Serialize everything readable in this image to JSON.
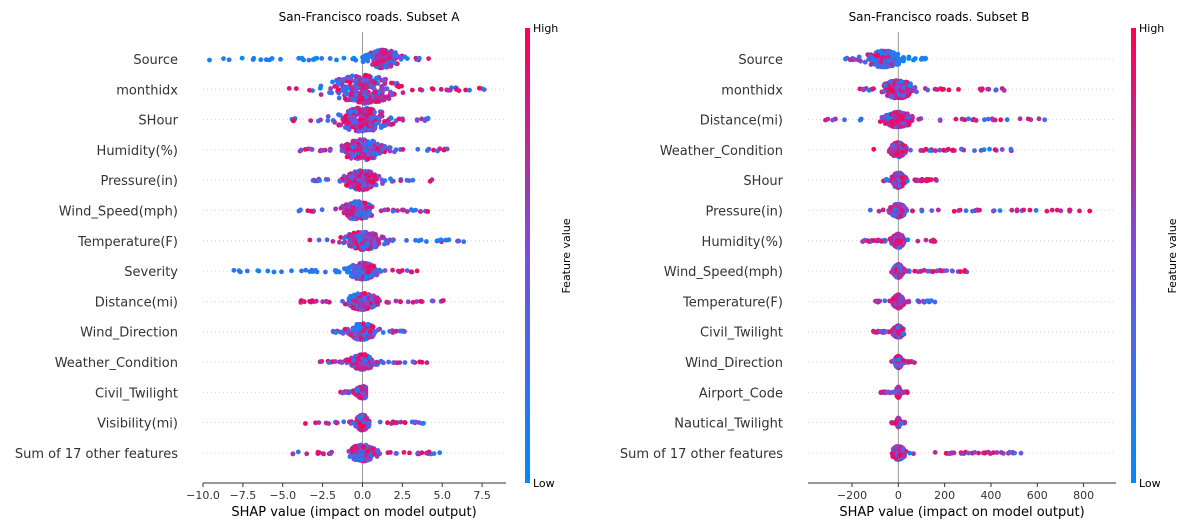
{
  "chart_data": [
    {
      "type": "scatter",
      "subtype": "shap-beeswarm",
      "title": "San-Francisco roads. Subset A",
      "xlabel": "SHAP value (impact on model output)",
      "xlim": [
        -10.0,
        9.0
      ],
      "xticks": [
        "−10.0",
        "−7.5",
        "−5.0",
        "−2.5",
        "0.0",
        "2.5",
        "5.0",
        "7.5"
      ],
      "xtick_values": [
        -10.0,
        -7.5,
        -5.0,
        -2.5,
        0.0,
        2.5,
        5.0,
        7.5
      ],
      "colorbar": {
        "label": "Feature value",
        "high": "High",
        "low": "Low",
        "low_color": "#008bfb",
        "high_color": "#ff0051"
      },
      "features": [
        {
          "name": "Source",
          "min": -9.7,
          "max": 4.2,
          "center": 1.3,
          "spread": 1.0,
          "width": 0.6,
          "red_bias": 0.55,
          "neg_color": "blue"
        },
        {
          "name": "monthidx",
          "min": -4.8,
          "max": 7.8,
          "center": 0.0,
          "spread": 2.0,
          "width": 0.95,
          "red_bias": 0.5
        },
        {
          "name": "SHour",
          "min": -4.5,
          "max": 4.3,
          "center": 0.0,
          "spread": 1.5,
          "width": 0.8,
          "red_bias": 0.55
        },
        {
          "name": "Humidity(%)",
          "min": -4.0,
          "max": 5.7,
          "center": 0.0,
          "spread": 1.2,
          "width": 0.7,
          "red_bias": 0.5
        },
        {
          "name": "Pressure(in)",
          "min": -4.1,
          "max": 4.6,
          "center": 0.0,
          "spread": 1.0,
          "width": 0.65,
          "red_bias": 0.5
        },
        {
          "name": "Wind_Speed(mph)",
          "min": -4.3,
          "max": 4.3,
          "center": -0.3,
          "spread": 0.9,
          "width": 0.6,
          "red_bias": 0.55
        },
        {
          "name": "Temperature(F)",
          "min": -3.5,
          "max": 7.2,
          "center": 0.0,
          "spread": 1.1,
          "width": 0.6,
          "red_bias": 0.5
        },
        {
          "name": "Severity",
          "min": -8.1,
          "max": 3.6,
          "center": 0.0,
          "spread": 0.8,
          "width": 0.55,
          "red_bias": 0.4,
          "neg_color": "blue"
        },
        {
          "name": "Distance(mi)",
          "min": -3.9,
          "max": 5.1,
          "center": 0.0,
          "spread": 0.9,
          "width": 0.55,
          "red_bias": 0.55
        },
        {
          "name": "Wind_Direction",
          "min": -2.2,
          "max": 2.8,
          "center": 0.0,
          "spread": 0.8,
          "width": 0.55,
          "red_bias": 0.6
        },
        {
          "name": "Weather_Condition",
          "min": -2.9,
          "max": 4.2,
          "center": 0.0,
          "spread": 0.7,
          "width": 0.5,
          "red_bias": 0.55
        },
        {
          "name": "Civil_Twilight",
          "min": -1.4,
          "max": 0.2,
          "center": 0.0,
          "spread": 0.4,
          "width": 0.4,
          "red_bias": 0.7
        },
        {
          "name": "Visibility(mi)",
          "min": -3.6,
          "max": 3.9,
          "center": 0.0,
          "spread": 0.4,
          "width": 0.5,
          "red_bias": 0.7
        },
        {
          "name": "Sum of 17 other features",
          "min": -5.0,
          "max": 4.9,
          "center": 0.0,
          "spread": 0.8,
          "width": 0.55,
          "red_bias": 0.55
        }
      ]
    },
    {
      "type": "scatter",
      "subtype": "shap-beeswarm",
      "title": "San-Francisco roads. Subset B",
      "xlabel": "SHAP value (impact on model output)",
      "xlim": [
        -390,
        940
      ],
      "xticks": [
        "−200",
        "0",
        "200",
        "400",
        "600",
        "800"
      ],
      "xtick_values": [
        -200,
        0,
        200,
        400,
        600,
        800
      ],
      "colorbar": {
        "label": "Feature value",
        "high": "High",
        "low": "Low",
        "low_color": "#008bfb",
        "high_color": "#ff0051"
      },
      "features": [
        {
          "name": "Source",
          "min": -230,
          "max": 150,
          "center": -60,
          "spread": 70,
          "width": 0.55,
          "red_bias": 0.4,
          "pos_color": "blue"
        },
        {
          "name": "monthidx",
          "min": -170,
          "max": 470,
          "center": 0,
          "spread": 60,
          "width": 0.6,
          "red_bias": 0.65
        },
        {
          "name": "Distance(mi)",
          "min": -330,
          "max": 700,
          "center": 0,
          "spread": 60,
          "width": 0.5,
          "red_bias": 0.6
        },
        {
          "name": "Weather_Condition",
          "min": -120,
          "max": 490,
          "center": 0,
          "spread": 30,
          "width": 0.5,
          "red_bias": 0.6
        },
        {
          "name": "SHour",
          "min": -70,
          "max": 170,
          "center": 0,
          "spread": 25,
          "width": 0.5,
          "red_bias": 0.55
        },
        {
          "name": "Pressure(in)",
          "min": -150,
          "max": 870,
          "center": 0,
          "spread": 30,
          "width": 0.45,
          "red_bias": 0.55
        },
        {
          "name": "Humidity(%)",
          "min": -180,
          "max": 170,
          "center": 0,
          "spread": 25,
          "width": 0.45,
          "red_bias": 0.55
        },
        {
          "name": "Wind_Speed(mph)",
          "min": -40,
          "max": 300,
          "center": 0,
          "spread": 18,
          "width": 0.45,
          "red_bias": 0.55
        },
        {
          "name": "Temperature(F)",
          "min": -110,
          "max": 170,
          "center": 0,
          "spread": 20,
          "width": 0.45,
          "red_bias": 0.55
        },
        {
          "name": "Civil_Twilight",
          "min": -110,
          "max": 40,
          "center": 0,
          "spread": 20,
          "width": 0.4,
          "red_bias": 0.7
        },
        {
          "name": "Wind_Direction",
          "min": -30,
          "max": 70,
          "center": 0,
          "spread": 14,
          "width": 0.4,
          "red_bias": 0.6
        },
        {
          "name": "Airport_Code",
          "min": -80,
          "max": 40,
          "center": 0,
          "spread": 8,
          "width": 0.35,
          "red_bias": 0.7
        },
        {
          "name": "Nautical_Twilight",
          "min": -30,
          "max": 30,
          "center": 0,
          "spread": 6,
          "width": 0.3,
          "red_bias": 0.7
        },
        {
          "name": "Sum of 17 other features",
          "min": -60,
          "max": 540,
          "center": 0,
          "spread": 25,
          "width": 0.45,
          "red_bias": 0.55
        }
      ]
    }
  ]
}
